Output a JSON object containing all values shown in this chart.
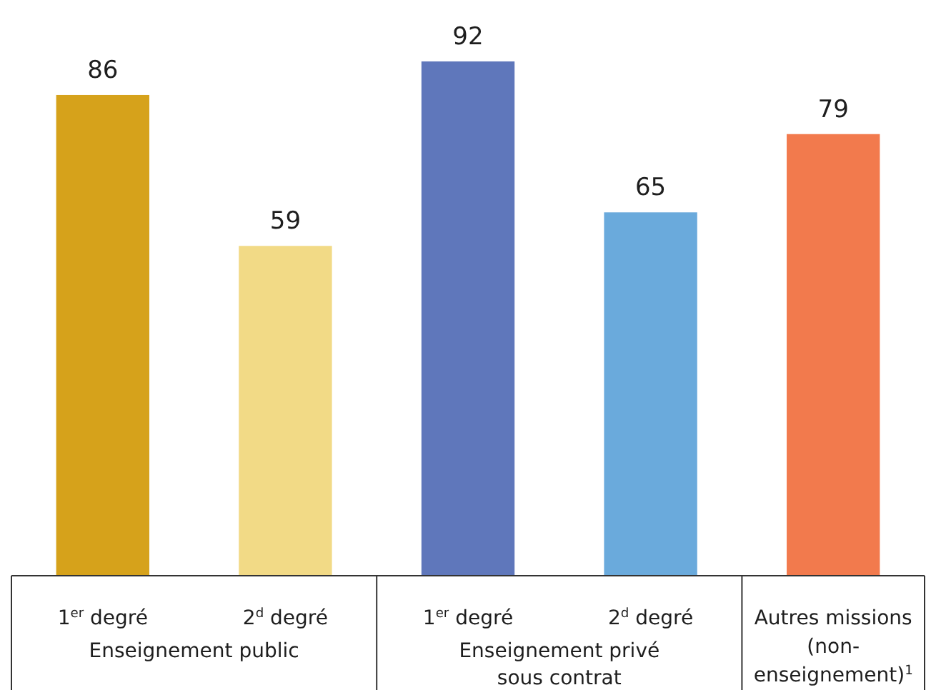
{
  "chart_data": {
    "type": "bar",
    "categories": [
      "1$^{er}$ degré",
      "2$^{d}$ degré",
      "1$^{er}$ degré",
      "2$^{d}$ degré",
      "Autres missions (non-enseignement)$^{1}$"
    ],
    "values": [
      86,
      59,
      92,
      65,
      79
    ],
    "colors": [
      "#d6a21b",
      "#f2da86",
      "#5f77bb",
      "#6aaadc",
      "#f27a4d"
    ],
    "data_labels": true,
    "annotations": [
      "Enseignement public",
      "Enseignement privé sous contrat"
    ]
  }
}
